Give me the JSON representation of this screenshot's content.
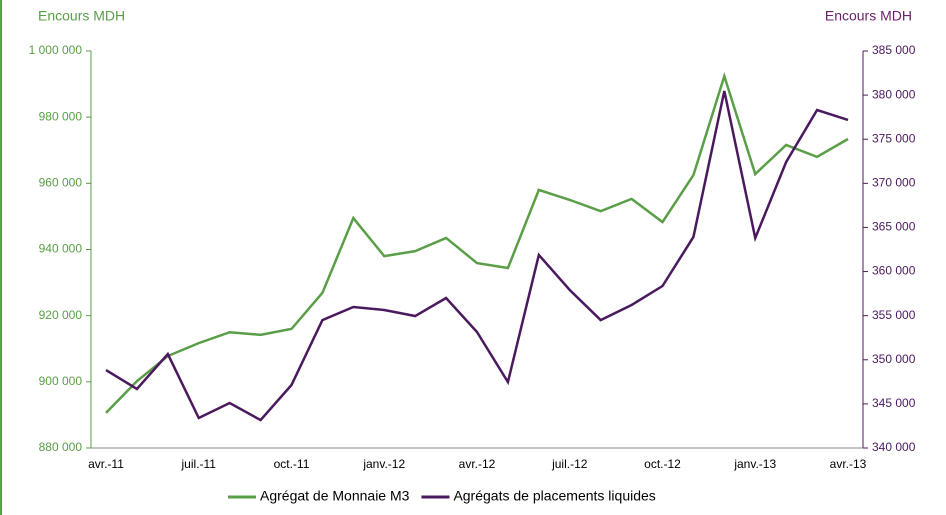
{
  "chart_data": {
    "type": "line",
    "y_label": "Encours MDH",
    "y2_label": "Encours MDH",
    "categories": [
      "avr.-11",
      null,
      null,
      "juil.-11",
      null,
      null,
      "oct.-11",
      null,
      null,
      "janv.-12",
      null,
      null,
      "avr.-12",
      null,
      null,
      "juil.-12",
      null,
      null,
      "oct.-12",
      null,
      null,
      "janv.-13",
      null,
      null,
      "avr.-13"
    ],
    "series": [
      {
        "name": "Agrégat de Monnaie M3",
        "color": "#5a9e47",
        "values": [
          890600,
          900200,
          907800,
          911700,
          915000,
          914200,
          916000,
          926900,
          949500,
          938000,
          939500,
          943500,
          935900,
          934400,
          958000,
          955000,
          951600,
          955300,
          948300,
          962500,
          992400,
          962800,
          971600,
          968000,
          973400
        ]
      },
      {
        "name": "Agrégats de placements liquides",
        "color": "#4b1a5e",
        "axis": "y2",
        "values": [
          348840,
          346690,
          350650,
          343400,
          345100,
          343170,
          347140,
          354500,
          355980,
          355640,
          354960,
          357000,
          353150,
          347480,
          361880,
          357910,
          354500,
          356210,
          358360,
          363920,
          380470,
          363800,
          372420,
          378310,
          377180
        ]
      }
    ],
    "ylim": [
      880000,
      1000000
    ],
    "yticks": [
      {
        "value": 880000,
        "label": "880 000"
      },
      {
        "value": 900000,
        "label": "900 000"
      },
      {
        "value": 920000,
        "label": "920 000"
      },
      {
        "value": 940000,
        "label": "940 000"
      },
      {
        "value": 960000,
        "label": "960 000"
      },
      {
        "value": 980000,
        "label": "980 000"
      },
      {
        "value": 1000000,
        "label": "1 000 000"
      }
    ],
    "y2lim": [
      340000,
      385000
    ],
    "y2ticks": [
      {
        "value": 340000,
        "label": "340 000"
      },
      {
        "value": 345000,
        "label": "345 000"
      },
      {
        "value": 350000,
        "label": "350 000"
      },
      {
        "value": 355000,
        "label": "355 000"
      },
      {
        "value": 360000,
        "label": "360 000"
      },
      {
        "value": 365000,
        "label": "365 000"
      },
      {
        "value": 370000,
        "label": "370 000"
      },
      {
        "value": 375000,
        "label": "375 000"
      },
      {
        "value": 380000,
        "label": "380 000"
      },
      {
        "value": 385000,
        "label": "385 000"
      }
    ],
    "legend": "bottom"
  }
}
